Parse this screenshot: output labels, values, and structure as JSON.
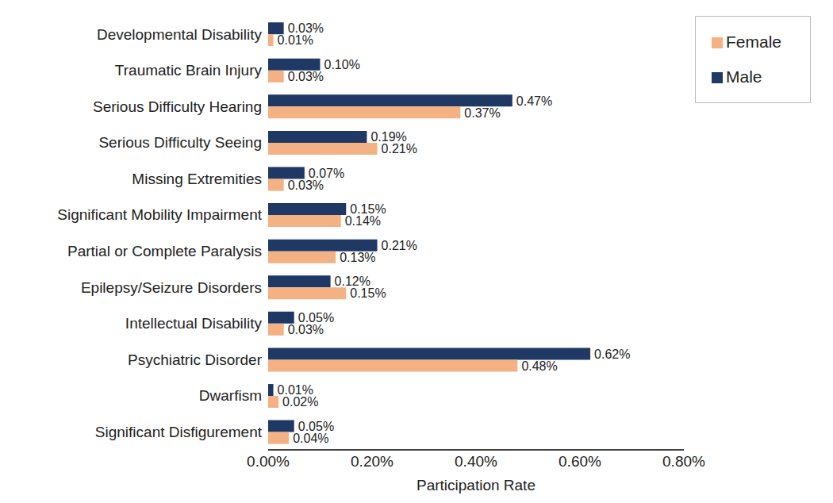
{
  "chart_data": {
    "type": "bar",
    "orientation": "horizontal",
    "x_label": "Participation Rate",
    "categories": [
      "Developmental Disability",
      "Traumatic Brain Injury",
      "Serious Difficulty Hearing",
      "Serious Difficulty Seeing",
      "Missing Extremities",
      "Significant Mobility Impairment",
      "Partial or Complete Paralysis",
      "Epilepsy/Seizure Disorders",
      "Intellectual Disability",
      "Psychiatric Disorder",
      "Dwarfism",
      "Significant Disfigurement"
    ],
    "series": [
      {
        "name": "Male",
        "color": "#1f3864",
        "values": [
          0.03,
          0.1,
          0.47,
          0.19,
          0.07,
          0.15,
          0.21,
          0.12,
          0.05,
          0.62,
          0.01,
          0.05
        ],
        "value_labels": [
          "0.03%",
          "0.10%",
          "0.47%",
          "0.19%",
          "0.07%",
          "0.15%",
          "0.21%",
          "0.12%",
          "0.05%",
          "0.62%",
          "0.01%",
          "0.05%"
        ]
      },
      {
        "name": "Female",
        "color": "#f4b183",
        "values": [
          0.01,
          0.03,
          0.37,
          0.21,
          0.03,
          0.14,
          0.13,
          0.15,
          0.03,
          0.48,
          0.02,
          0.04
        ],
        "value_labels": [
          "0.01%",
          "0.03%",
          "0.37%",
          "0.21%",
          "0.03%",
          "0.14%",
          "0.13%",
          "0.15%",
          "0.03%",
          "0.48%",
          "0.02%",
          "0.04%"
        ]
      }
    ],
    "xlim": [
      0,
      0.8
    ],
    "xticks": [
      {
        "value": 0,
        "label": "0.00%"
      },
      {
        "value": 0.2,
        "label": "0.20%"
      },
      {
        "value": 0.4,
        "label": "0.40%"
      },
      {
        "value": 0.6,
        "label": "0.60%"
      },
      {
        "value": 0.8,
        "label": "0.80%"
      }
    ],
    "grid": false,
    "legend": "upper right",
    "data_labels": true
  }
}
